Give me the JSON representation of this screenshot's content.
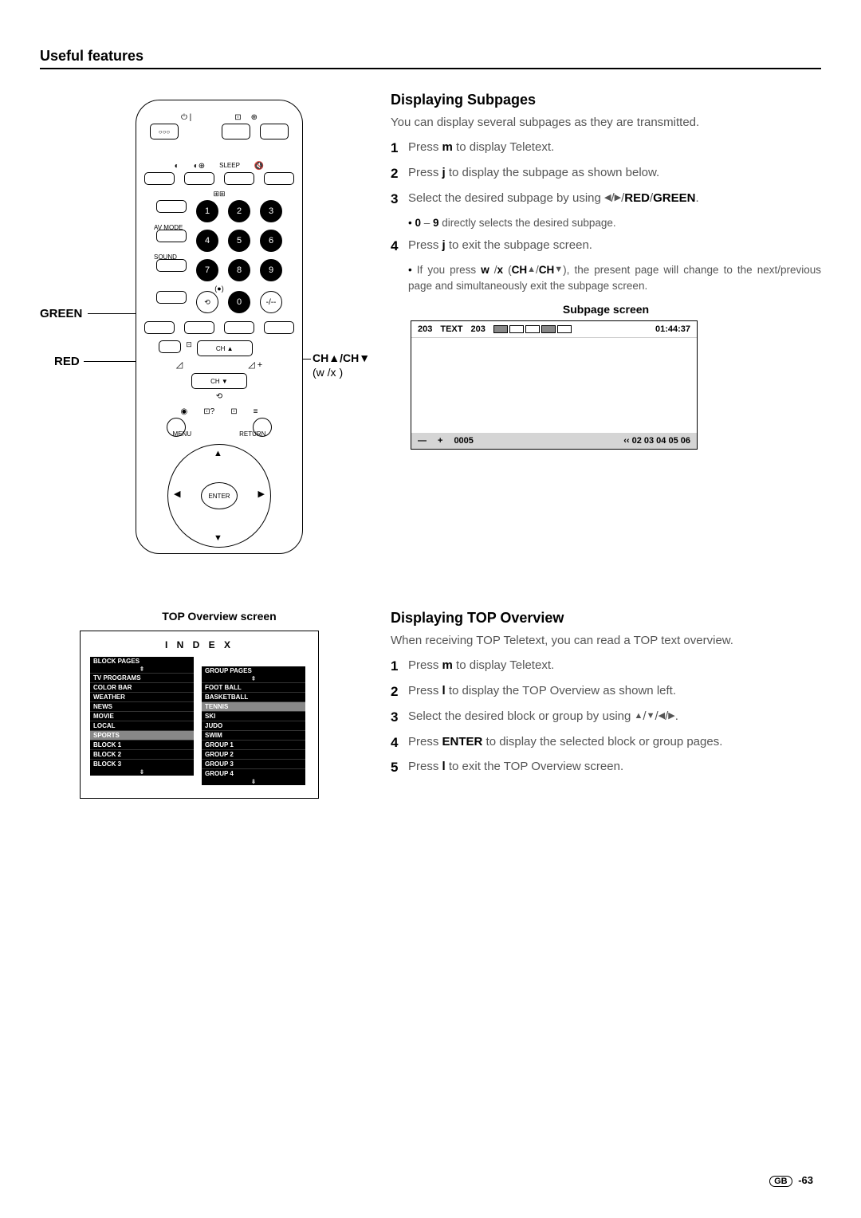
{
  "header": "Useful features",
  "remote": {
    "callouts": {
      "green": "GREEN",
      "red": "RED",
      "ch": "CH▲/CH▼",
      "ch_sub": "(w  /x  )"
    },
    "labels": {
      "sleep": "SLEEP",
      "av_mode": "AV MODE",
      "sound": "SOUND",
      "menu": "MENU",
      "return": "RETURN",
      "enter": "ENTER",
      "chup": "CH ▲",
      "chdn": "CH ▼"
    },
    "numbers": [
      "1",
      "2",
      "3",
      "4",
      "5",
      "6",
      "7",
      "8",
      "9",
      "0"
    ]
  },
  "subpages": {
    "heading": "Displaying Subpages",
    "intro": "You can display several subpages as they are transmitted.",
    "steps": [
      {
        "n": "1",
        "t": "Press m  to display Teletext."
      },
      {
        "n": "2",
        "t": "Press j  to display the subpage as shown below."
      },
      {
        "n": "3",
        "t": "Select the desired subpage by using ◀/▶/RED/GREEN.",
        "bullet": "0 – 9 directly selects the desired subpage."
      },
      {
        "n": "4",
        "t": "Press j  to exit the subpage screen.",
        "bullet": "If you press w /x  (CH▲/CH▼), the present page will change to the next/previous page and simultaneously exit the subpage screen."
      }
    ],
    "screen": {
      "title": "Subpage screen",
      "page1": "203",
      "text": "TEXT",
      "page2": "203",
      "time": "01:44:37",
      "bot_minus": "—",
      "bot_plus": "+",
      "bot_num": "0005",
      "bot_pages": "‹‹ 02 03 04 05 06"
    }
  },
  "topoverview": {
    "screentitle": "TOP Overview screen",
    "indextitle": "I N D E X",
    "block_head": "BLOCK PAGES",
    "group_head": "GROUP PAGES",
    "blocks": [
      "TV PROGRAMS",
      "COLOR BAR",
      "WEATHER",
      "NEWS",
      "MOVIE",
      "LOCAL",
      "SPORTS",
      "BLOCK 1",
      "BLOCK 2",
      "BLOCK 3"
    ],
    "block_hl_index": 6,
    "groups": [
      "FOOT BALL",
      "BASKETBALL",
      "TENNIS",
      "SKI",
      "JUDO",
      "SWIM",
      "GROUP 1",
      "GROUP 2",
      "GROUP 3",
      "GROUP 4"
    ],
    "group_hl_index": 2,
    "heading": "Displaying TOP Overview",
    "intro": "When receiving TOP Teletext, you can read a TOP text overview.",
    "steps": [
      {
        "n": "1",
        "t": "Press m  to display Teletext."
      },
      {
        "n": "2",
        "t": "Press l  to display the TOP Overview as shown left."
      },
      {
        "n": "3",
        "t": "Select the desired block or group by using ▲/▼/◀/▶."
      },
      {
        "n": "4",
        "t": "Press ENTER to display the selected block or group pages."
      },
      {
        "n": "5",
        "t": "Press l  to exit the TOP Overview screen."
      }
    ]
  },
  "pagenum": {
    "region": "GB",
    "num": "63"
  }
}
